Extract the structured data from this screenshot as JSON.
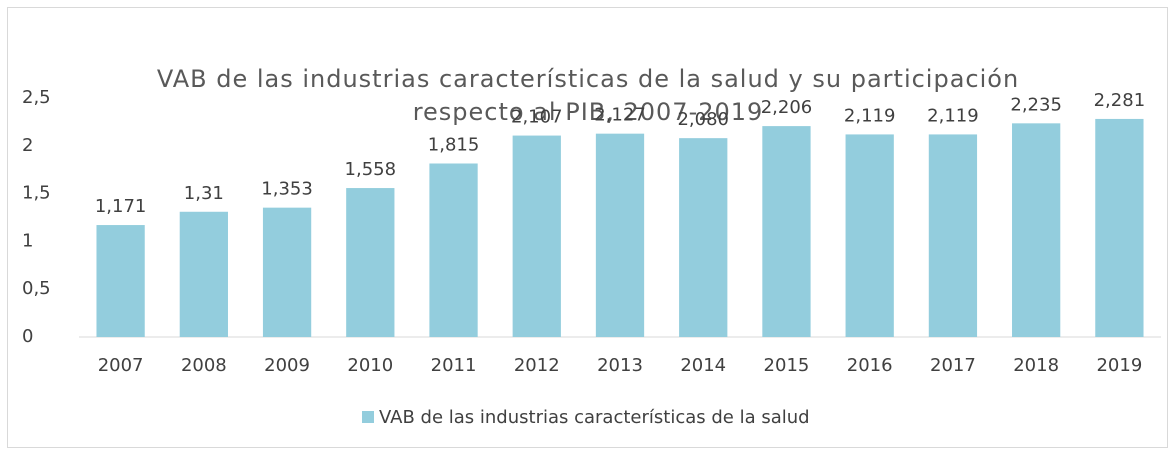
{
  "chart_data": {
    "type": "bar",
    "title": [
      "VAB de las industrias características de la salud y su participación",
      "respecto al PIB, 2007-2019"
    ],
    "categories": [
      "2007",
      "2008",
      "2009",
      "2010",
      "2011",
      "2012",
      "2013",
      "2014",
      "2015",
      "2016",
      "2017",
      "2018",
      "2019"
    ],
    "series": [
      {
        "name": "VAB de las industrias características de la salud",
        "color": "#93cddd",
        "values": [
          1.171,
          1.31,
          1.353,
          1.558,
          1.815,
          2.107,
          2.127,
          2.08,
          2.206,
          2.119,
          2.119,
          2.235,
          2.281
        ],
        "value_labels": [
          "1,171",
          "1,31",
          "1,353",
          "1,558",
          "1,815",
          "2,107",
          "2,127",
          "2,080",
          "2,206",
          "2,119",
          "2,119",
          "2,235",
          "2,281"
        ]
      }
    ],
    "ylim": [
      0,
      2.5
    ],
    "yticks": [
      0,
      {
        "value": 0.5,
        "label": "0,5"
      },
      1,
      {
        "value": 1.5,
        "label": "1,5"
      },
      2,
      {
        "value": 2.5,
        "label": "2,5"
      }
    ],
    "grid": false,
    "legend": "bottom"
  }
}
